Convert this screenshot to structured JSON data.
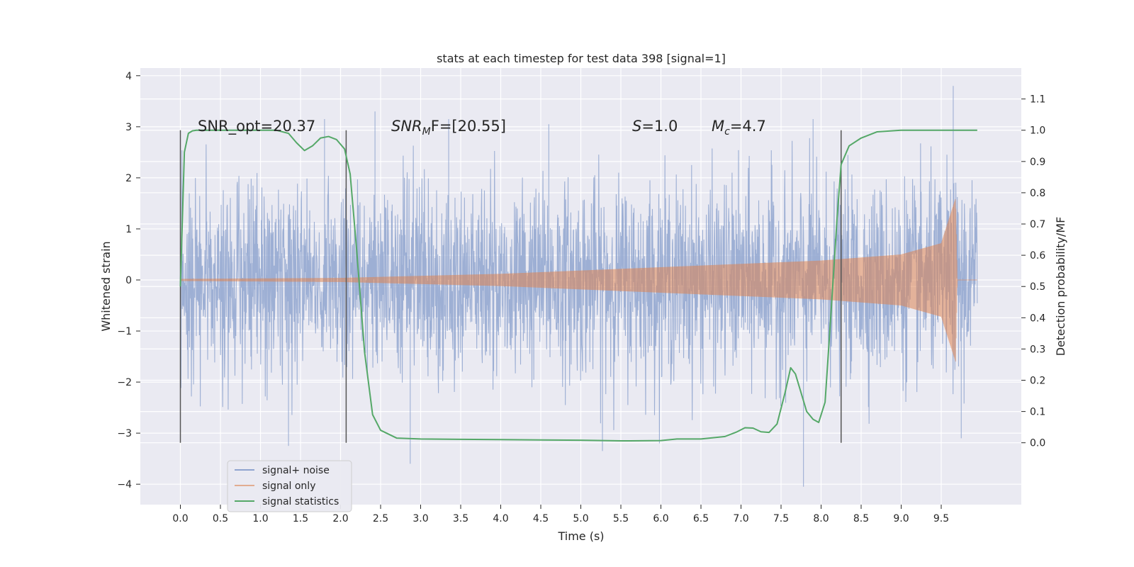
{
  "chart_data": {
    "type": "line",
    "title": "stats at each timestep for test data 398 [signal=1]",
    "xlabel": "Time (s)",
    "ylabel": "Whitened strain",
    "y2label": "Detection probability/MF",
    "xlim": [
      -0.5,
      10.5
    ],
    "ylim": [
      -4.4,
      4.15
    ],
    "y2lim": [
      -0.198,
      1.199
    ],
    "x_ticks": [
      "0.0",
      "0.5",
      "1.0",
      "1.5",
      "2.0",
      "2.5",
      "3.0",
      "3.5",
      "4.0",
      "4.5",
      "5.0",
      "5.5",
      "6.0",
      "6.5",
      "7.0",
      "7.5",
      "8.0",
      "8.5",
      "9.0",
      "9.5"
    ],
    "y_ticks": [
      4,
      3,
      2,
      1,
      0,
      -1,
      -2,
      -3,
      -4
    ],
    "y_tick_labels": [
      "4",
      "3",
      "2",
      "1",
      "0",
      "−1",
      "−2",
      "−3",
      "−4"
    ],
    "y2_ticks": [
      "0.0",
      "0.1",
      "0.2",
      "0.3",
      "0.4",
      "0.5",
      "0.6",
      "0.7",
      "0.8",
      "0.9",
      "1.0",
      "1.1"
    ],
    "grid": true,
    "legend_position": "lower-left",
    "annotations": {
      "snr_opt": "SNR_opt=20.37",
      "snr_mf_main": "SNR",
      "snr_mf_sub": "M",
      "snr_mf_rest": "F=[20.55]",
      "s_main": "S",
      "s_rest": "=1.0",
      "mc_main": "M",
      "mc_sub": "c",
      "mc_rest": "=4.7"
    },
    "vertical_lines_x": [
      0.0,
      2.07,
      8.25
    ],
    "series": [
      {
        "name": "signal+ noise",
        "color": "#8fa4cf",
        "x_range": [
          0.0,
          9.95
        ],
        "typical_amplitude": 1.3,
        "peak_values": [
          3.15,
          3.3,
          3.15,
          3.05,
          3.15,
          -3.25,
          -3.6,
          -3.35,
          -4.05,
          3.8,
          -3.1
        ]
      },
      {
        "name": "signal only",
        "color": "#dd8452",
        "x_range": [
          0.0,
          9.95
        ],
        "envelope": [
          [
            0.0,
            0.02
          ],
          [
            2.0,
            0.04
          ],
          [
            4.0,
            0.12
          ],
          [
            6.0,
            0.25
          ],
          [
            8.0,
            0.38
          ],
          [
            9.0,
            0.5
          ],
          [
            9.5,
            0.72
          ],
          [
            9.68,
            1.6
          ],
          [
            9.7,
            0.0
          ],
          [
            9.95,
            0.0
          ]
        ]
      },
      {
        "name": "signal statistics",
        "color": "#55a868",
        "x": [
          0.0,
          0.05,
          0.1,
          0.15,
          0.2,
          0.3,
          0.5,
          0.8,
          1.0,
          1.2,
          1.35,
          1.45,
          1.55,
          1.65,
          1.75,
          1.85,
          1.95,
          2.05,
          2.12,
          2.2,
          2.3,
          2.4,
          2.5,
          2.7,
          3.0,
          3.5,
          4.0,
          4.5,
          5.0,
          5.5,
          6.0,
          6.2,
          6.5,
          6.8,
          6.95,
          7.05,
          7.15,
          7.25,
          7.35,
          7.45,
          7.55,
          7.62,
          7.68,
          7.75,
          7.82,
          7.9,
          7.97,
          8.05,
          8.12,
          8.2,
          8.25,
          8.35,
          8.5,
          8.7,
          9.0,
          9.95
        ],
        "values": [
          0.5,
          0.93,
          0.99,
          0.998,
          1.0,
          1.0,
          1.0,
          1.0,
          1.0,
          1.0,
          0.99,
          0.96,
          0.935,
          0.95,
          0.975,
          0.98,
          0.97,
          0.94,
          0.86,
          0.62,
          0.29,
          0.09,
          0.04,
          0.015,
          0.012,
          0.011,
          0.01,
          0.009,
          0.008,
          0.006,
          0.007,
          0.012,
          0.012,
          0.02,
          0.035,
          0.048,
          0.047,
          0.035,
          0.033,
          0.06,
          0.16,
          0.24,
          0.22,
          0.16,
          0.1,
          0.075,
          0.065,
          0.13,
          0.4,
          0.72,
          0.89,
          0.95,
          0.975,
          0.995,
          1.0,
          1.0
        ]
      }
    ]
  }
}
